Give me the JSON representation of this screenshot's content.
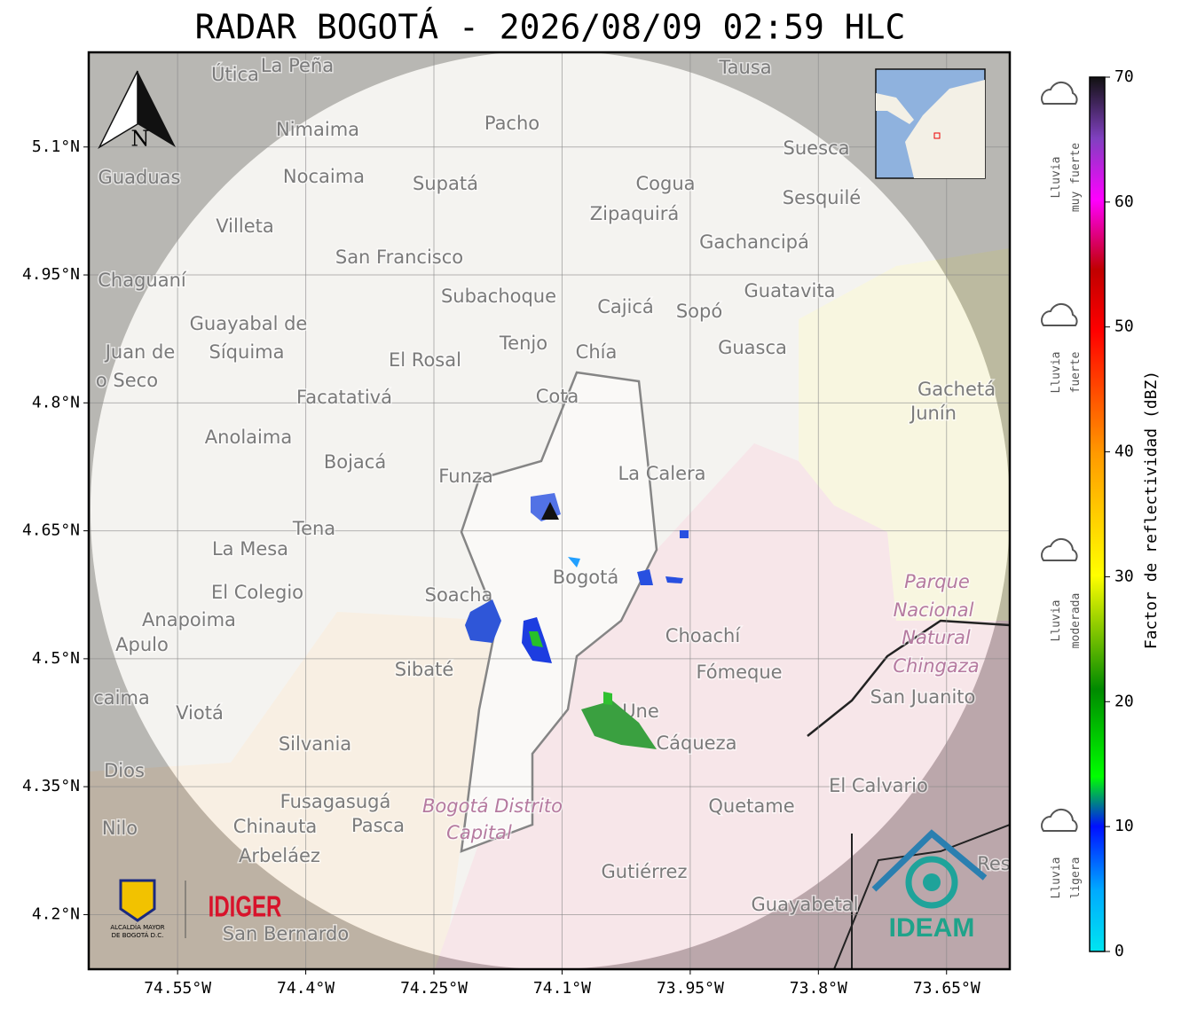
{
  "title": "RADAR BOGOTÁ - 2026/08/09 02:59 HLC",
  "map": {
    "lon_range": [
      -74.654,
      -73.576
    ],
    "lat_range": [
      4.136,
      5.211
    ],
    "lon_ticks": [
      {
        "value": -74.55,
        "label": "74.55°W"
      },
      {
        "value": -74.4,
        "label": "74.4°W"
      },
      {
        "value": -74.25,
        "label": "74.25°W"
      },
      {
        "value": -74.1,
        "label": "74.1°W"
      },
      {
        "value": -73.95,
        "label": "73.95°W"
      },
      {
        "value": -73.8,
        "label": "73.8°W"
      },
      {
        "value": -73.65,
        "label": "73.65°W"
      }
    ],
    "lat_ticks": [
      {
        "value": 5.1,
        "label": "5.1°N"
      },
      {
        "value": 4.95,
        "label": "4.95°N"
      },
      {
        "value": 4.8,
        "label": "4.8°N"
      },
      {
        "value": 4.65,
        "label": "4.65°N"
      },
      {
        "value": 4.5,
        "label": "4.5°N"
      },
      {
        "value": 4.35,
        "label": "4.35°N"
      },
      {
        "value": 4.2,
        "label": "4.2°N"
      }
    ],
    "north": "N",
    "places": [
      "Útica",
      "La Peña",
      "Tausa",
      "Pacho",
      "Nimaima",
      "Suesca",
      "Guaduas",
      "Nocaima",
      "Supatá",
      "Cogua",
      "Sesquilé",
      "Zipaquirá",
      "Villeta",
      "Gachancipá",
      "San Francisco",
      "Chaguaní",
      "Guatavita",
      "Subachoque",
      "Cajicá",
      "Sopó",
      "Guayabal de",
      "Síquima",
      "Tenjo",
      "Chía",
      "Guasca",
      "Juan de",
      "El Rosal",
      "o Seco",
      "Gachetá",
      "Facatativá",
      "Cota",
      "Junín",
      "Anolaima",
      "Bojacá",
      "Funza",
      "La Calera",
      "Tena",
      "La Mesa",
      "Bogotá",
      "Parque",
      "Soacha",
      "El Colegio",
      "Nacional",
      "Anapoima",
      "Choachí",
      "Natural",
      "Apulo",
      "Chingaza",
      "Sibaté",
      "Fómeque",
      "San Juanito",
      "caima",
      "Viotá",
      "Une",
      "Silvania",
      "Cáqueza",
      "Dios",
      "El Calvario",
      "Fusagasugá",
      "Bogotá Distrito",
      "Quetame",
      "Nilo",
      "Chinauta",
      "Pasca",
      "Capital",
      "Arbeláez",
      "Gutiérrez",
      "Res",
      "Guayabetal",
      "San Bernardo"
    ]
  },
  "colorbar": {
    "label": "Factor de reflectividad (dBZ)",
    "range": [
      0,
      70
    ],
    "ticks": [
      0,
      10,
      20,
      30,
      40,
      50,
      60,
      70
    ],
    "categories": [
      {
        "line1": "Lluvia",
        "line2": "muy fuerte"
      },
      {
        "line1": "Lluvia",
        "line2": "fuerte"
      },
      {
        "line1": "Lluvia",
        "line2": "moderada"
      },
      {
        "line1": "Lluvia",
        "line2": "ligera"
      }
    ]
  },
  "logos": {
    "alcaldia_1": "ALCALDÍA MAYOR",
    "alcaldia_2": "DE BOGOTÁ D.C.",
    "idiger": "IDIGER",
    "ideam": "IDEAM"
  }
}
